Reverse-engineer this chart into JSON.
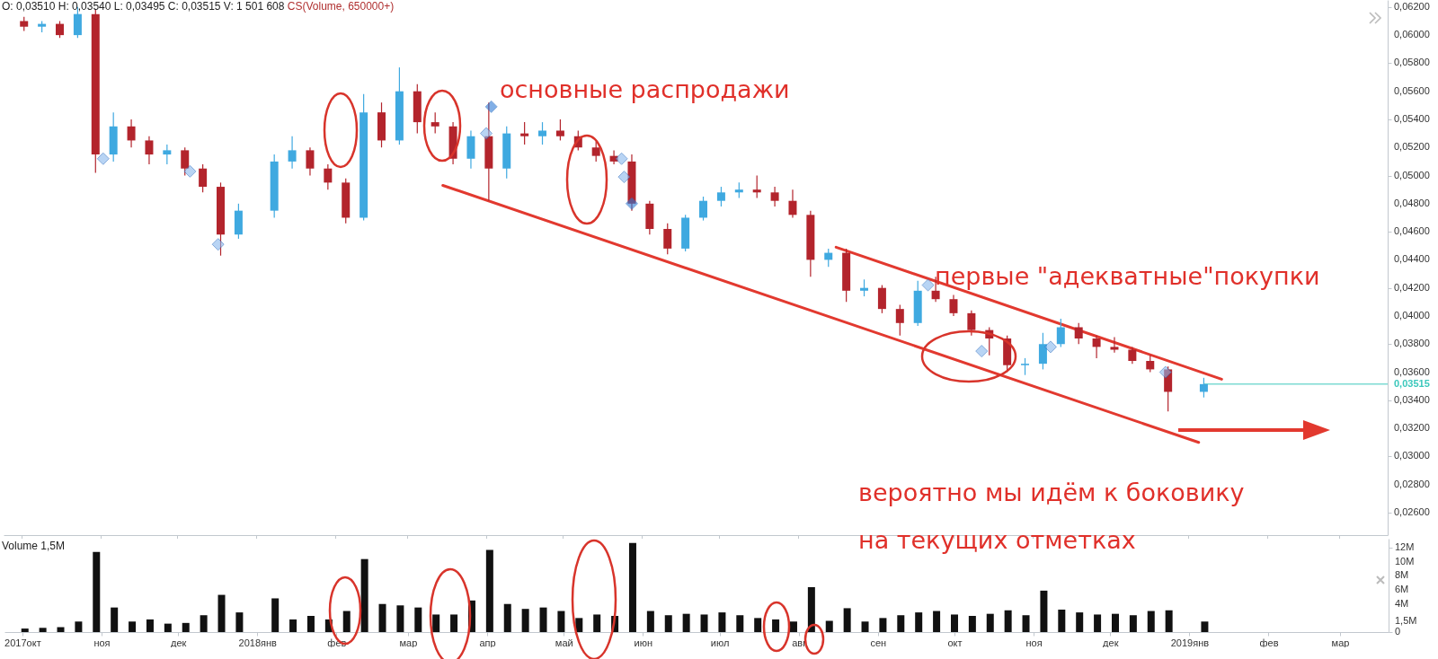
{
  "chart_data": [
    {
      "type": "candlestick",
      "title": "O: 0,03510  H: 0,03540  L: 0,03495  C: 0,03515  V: 1 501 608",
      "subtitle": "CS(Volume, 650000+)",
      "x": [
        "2017-10-02",
        "2017-10-09",
        "2017-10-16",
        "2017-10-23",
        "2017-10-30",
        "2017-11-06",
        "2017-11-13",
        "2017-11-20",
        "2017-11-27",
        "2017-12-04",
        "2017-12-11",
        "2017-12-18",
        "2017-12-25",
        "2018-01-08",
        "2018-01-15",
        "2018-01-22",
        "2018-01-29",
        "2018-02-05",
        "2018-02-12",
        "2018-02-19",
        "2018-02-26",
        "2018-03-05",
        "2018-03-12",
        "2018-03-19",
        "2018-03-26",
        "2018-04-02",
        "2018-04-09",
        "2018-04-16",
        "2018-04-23",
        "2018-04-30",
        "2018-05-07",
        "2018-05-14",
        "2018-05-21",
        "2018-05-28",
        "2018-06-04",
        "2018-06-11",
        "2018-06-18",
        "2018-06-25",
        "2018-07-02",
        "2018-07-09",
        "2018-07-16",
        "2018-07-23",
        "2018-07-30",
        "2018-08-06",
        "2018-08-13",
        "2018-08-20",
        "2018-08-27",
        "2018-09-03",
        "2018-09-10",
        "2018-09-17",
        "2018-09-24",
        "2018-10-01",
        "2018-10-08",
        "2018-10-15",
        "2018-10-22",
        "2018-10-29",
        "2018-11-05",
        "2018-11-12",
        "2018-11-19",
        "2018-11-26",
        "2018-12-03",
        "2018-12-10",
        "2018-12-17",
        "2018-12-24",
        "2019-01-07"
      ],
      "ohlc": [
        [
          0.061,
          0.0613,
          0.0603,
          0.0606
        ],
        [
          0.0606,
          0.061,
          0.0602,
          0.0608
        ],
        [
          0.0608,
          0.061,
          0.0598,
          0.06
        ],
        [
          0.06,
          0.062,
          0.0598,
          0.0615
        ],
        [
          0.0615,
          0.0618,
          0.0502,
          0.0515
        ],
        [
          0.0515,
          0.0545,
          0.051,
          0.0535
        ],
        [
          0.0535,
          0.054,
          0.052,
          0.0525
        ],
        [
          0.0525,
          0.0528,
          0.0508,
          0.0515
        ],
        [
          0.0515,
          0.0522,
          0.0508,
          0.0518
        ],
        [
          0.0518,
          0.052,
          0.05,
          0.0505
        ],
        [
          0.0505,
          0.0508,
          0.0488,
          0.0492
        ],
        [
          0.0492,
          0.0495,
          0.0443,
          0.0458
        ],
        [
          0.0458,
          0.048,
          0.0455,
          0.0475
        ],
        [
          0.0475,
          0.0515,
          0.047,
          0.051
        ],
        [
          0.051,
          0.0528,
          0.0505,
          0.0518
        ],
        [
          0.0518,
          0.052,
          0.05,
          0.0505
        ],
        [
          0.0505,
          0.0508,
          0.049,
          0.0495
        ],
        [
          0.0495,
          0.0498,
          0.0466,
          0.047
        ],
        [
          0.047,
          0.0558,
          0.0468,
          0.0545
        ],
        [
          0.0545,
          0.0552,
          0.052,
          0.0525
        ],
        [
          0.0525,
          0.0577,
          0.0522,
          0.056
        ],
        [
          0.056,
          0.0565,
          0.053,
          0.0538
        ],
        [
          0.0538,
          0.0545,
          0.053,
          0.0535
        ],
        [
          0.0535,
          0.0538,
          0.0508,
          0.0512
        ],
        [
          0.0512,
          0.0532,
          0.0505,
          0.0528
        ],
        [
          0.0528,
          0.0552,
          0.0482,
          0.0505
        ],
        [
          0.0505,
          0.0535,
          0.0498,
          0.053
        ],
        [
          0.053,
          0.0538,
          0.0522,
          0.0528
        ],
        [
          0.0528,
          0.0538,
          0.0522,
          0.0532
        ],
        [
          0.0532,
          0.054,
          0.0525,
          0.0528
        ],
        [
          0.0528,
          0.0532,
          0.0518,
          0.052
        ],
        [
          0.052,
          0.0524,
          0.051,
          0.0514
        ],
        [
          0.0514,
          0.0518,
          0.0508,
          0.051
        ],
        [
          0.051,
          0.0515,
          0.0475,
          0.048
        ],
        [
          0.048,
          0.0482,
          0.0458,
          0.0462
        ],
        [
          0.0462,
          0.0466,
          0.0444,
          0.0448
        ],
        [
          0.0448,
          0.0472,
          0.0446,
          0.047
        ],
        [
          0.047,
          0.0485,
          0.0468,
          0.0482
        ],
        [
          0.0482,
          0.0492,
          0.0478,
          0.0488
        ],
        [
          0.0488,
          0.0495,
          0.0484,
          0.049
        ],
        [
          0.049,
          0.05,
          0.0484,
          0.0488
        ],
        [
          0.0488,
          0.0492,
          0.0478,
          0.0482
        ],
        [
          0.0482,
          0.049,
          0.047,
          0.0472
        ],
        [
          0.0472,
          0.0475,
          0.0428,
          0.044
        ],
        [
          0.044,
          0.0448,
          0.0435,
          0.0445
        ],
        [
          0.0445,
          0.0448,
          0.041,
          0.0418
        ],
        [
          0.0418,
          0.0426,
          0.0414,
          0.042
        ],
        [
          0.042,
          0.0422,
          0.0402,
          0.0405
        ],
        [
          0.0405,
          0.0408,
          0.0386,
          0.0395
        ],
        [
          0.0395,
          0.0425,
          0.0393,
          0.0418
        ],
        [
          0.0418,
          0.0428,
          0.041,
          0.0412
        ],
        [
          0.0412,
          0.0415,
          0.04,
          0.0402
        ],
        [
          0.0402,
          0.0404,
          0.0386,
          0.039
        ],
        [
          0.039,
          0.0392,
          0.0372,
          0.0384
        ],
        [
          0.0384,
          0.0386,
          0.036,
          0.0365
        ],
        [
          0.0365,
          0.037,
          0.0358,
          0.0366
        ],
        [
          0.0366,
          0.0388,
          0.0362,
          0.038
        ],
        [
          0.038,
          0.0398,
          0.0378,
          0.0392
        ],
        [
          0.0392,
          0.0395,
          0.038,
          0.0384
        ],
        [
          0.0384,
          0.0386,
          0.037,
          0.0378
        ],
        [
          0.0378,
          0.0385,
          0.0374,
          0.0376
        ],
        [
          0.0376,
          0.0378,
          0.0366,
          0.0368
        ],
        [
          0.0368,
          0.0372,
          0.036,
          0.0362
        ],
        [
          0.0362,
          0.0364,
          0.0332,
          0.0346
        ],
        [
          0.0346,
          0.0356,
          0.0342,
          0.03515
        ]
      ],
      "colors": [
        "#b3242c",
        "#3fa9e0",
        "#b3242c",
        "#3fa9e0",
        "#b3242c",
        "#3fa9e0",
        "#b3242c",
        "#b3242c",
        "#3fa9e0",
        "#b3242c",
        "#b3242c",
        "#b3242c",
        "#3fa9e0",
        "#3fa9e0",
        "#3fa9e0",
        "#b3242c",
        "#b3242c",
        "#b3242c",
        "#3fa9e0",
        "#b3242c",
        "#3fa9e0",
        "#b3242c",
        "#b3242c",
        "#b3242c",
        "#3fa9e0",
        "#b3242c",
        "#3fa9e0",
        "#b3242c",
        "#3fa9e0",
        "#b3242c",
        "#b3242c",
        "#b3242c",
        "#b3242c",
        "#b3242c",
        "#b3242c",
        "#b3242c",
        "#3fa9e0",
        "#3fa9e0",
        "#3fa9e0",
        "#3fa9e0",
        "#b3242c",
        "#b3242c",
        "#b3242c",
        "#b3242c",
        "#3fa9e0",
        "#b3242c",
        "#3fa9e0",
        "#b3242c",
        "#b3242c",
        "#3fa9e0",
        "#b3242c",
        "#b3242c",
        "#b3242c",
        "#b3242c",
        "#b3242c",
        "#3fa9e0",
        "#3fa9e0",
        "#3fa9e0",
        "#b3242c",
        "#b3242c",
        "#b3242c",
        "#b3242c",
        "#b3242c",
        "#b3242c",
        "#3fa9e0"
      ],
      "series": [
        {
          "type": "line",
          "color": "#e2392f",
          "x": [
            "2018-03-15",
            "2019-01-05"
          ],
          "values": [
            0.0493,
            0.031
          ]
        },
        {
          "type": "line",
          "color": "#e2392f",
          "x": [
            "2018-08-16",
            "2019-01-14"
          ],
          "values": [
            0.0449,
            0.0355
          ]
        },
        {
          "type": "scatter",
          "marker": "diamond",
          "color": "#8ab8ee",
          "x": [
            "2017-11-02",
            "2017-12-06",
            "2017-12-17",
            "2018-04-01",
            "2018-05-24",
            "2018-05-25",
            "2018-09-21",
            "2018-10-12",
            "2018-11-08",
            "2018-12-23"
          ],
          "values": [
            0.0512,
            0.0503,
            0.0451,
            0.053,
            0.0512,
            0.0499,
            0.0422,
            0.0375,
            0.0378,
            0.036
          ]
        },
        {
          "type": "scatter",
          "marker": "diamond",
          "color": "#2e7bd6",
          "x": [
            "2018-04-03",
            "2018-05-28"
          ],
          "values": [
            0.0549,
            0.048
          ]
        }
      ],
      "xlim": [
        "2017-09-24",
        "2019-03-20"
      ],
      "xticks": [
        {
          "value": "2017-10-01",
          "label": null
        },
        {
          "value": "2017-11-01",
          "label": null
        },
        {
          "value": "2017-12-01",
          "label": null
        },
        {
          "value": "2018-01-01",
          "label": null
        },
        {
          "value": "2018-02-01",
          "label": null
        },
        {
          "value": "2018-03-01",
          "label": null
        },
        {
          "value": "2018-04-01",
          "label": null
        },
        {
          "value": "2018-05-01",
          "label": null
        },
        {
          "value": "2018-06-01",
          "label": null
        },
        {
          "value": "2018-07-01",
          "label": null
        },
        {
          "value": "2018-08-01",
          "label": null
        },
        {
          "value": "2018-09-01",
          "label": null
        },
        {
          "value": "2018-10-01",
          "label": null
        },
        {
          "value": "2018-11-01",
          "label": null
        },
        {
          "value": "2018-12-01",
          "label": null
        },
        {
          "value": "2019-01-01",
          "label": null
        },
        {
          "value": "2019-02-01",
          "label": null
        },
        {
          "value": "2019-03-01",
          "label": null
        }
      ],
      "ylim": [
        0.0244,
        0.0625
      ],
      "yticks": [
        {
          "value": 0.026,
          "label": "0,02600"
        },
        {
          "value": 0.028,
          "label": "0,02800"
        },
        {
          "value": 0.03,
          "label": "0,03000"
        },
        {
          "value": 0.032,
          "label": "0,03200"
        },
        {
          "value": 0.034,
          "label": "0,03400"
        },
        {
          "value": 0.036,
          "label": "0,03600"
        },
        {
          "value": 0.038,
          "label": "0,03800"
        },
        {
          "value": 0.04,
          "label": "0,04000"
        },
        {
          "value": 0.042,
          "label": "0,04200"
        },
        {
          "value": 0.044,
          "label": "0,04400"
        },
        {
          "value": 0.046,
          "label": "0,04600"
        },
        {
          "value": 0.048,
          "label": "0,04800"
        },
        {
          "value": 0.05,
          "label": "0,05000"
        },
        {
          "value": 0.052,
          "label": "0,05200"
        },
        {
          "value": 0.054,
          "label": "0,05400"
        },
        {
          "value": 0.056,
          "label": "0,05600"
        },
        {
          "value": 0.058,
          "label": "0,05800"
        },
        {
          "value": 0.06,
          "label": "0,06000"
        },
        {
          "value": 0.062,
          "label": "0,06200"
        }
      ],
      "ref_lines": [
        {
          "axis": "y",
          "value": 0.03515,
          "label": "0,03515",
          "color": "#3cc8bc"
        }
      ],
      "tick_labels": "y",
      "annotations": [
        "основные распродажи",
        "первые \"адекватные\"покупки",
        "вероятно мы идём к боковику",
        "на текущих отметках"
      ]
    },
    {
      "type": "bar",
      "title": "Volume 1,5M",
      "color": "#111111",
      "x": [
        "2017-10-02",
        "2017-10-09",
        "2017-10-16",
        "2017-10-23",
        "2017-10-30",
        "2017-11-06",
        "2017-11-13",
        "2017-11-20",
        "2017-11-27",
        "2017-12-04",
        "2017-12-11",
        "2017-12-18",
        "2017-12-25",
        "2018-01-08",
        "2018-01-15",
        "2018-01-22",
        "2018-01-29",
        "2018-02-05",
        "2018-02-12",
        "2018-02-19",
        "2018-02-26",
        "2018-03-05",
        "2018-03-12",
        "2018-03-19",
        "2018-03-26",
        "2018-04-02",
        "2018-04-09",
        "2018-04-16",
        "2018-04-23",
        "2018-04-30",
        "2018-05-07",
        "2018-05-14",
        "2018-05-21",
        "2018-05-28",
        "2018-06-04",
        "2018-06-11",
        "2018-06-18",
        "2018-06-25",
        "2018-07-02",
        "2018-07-09",
        "2018-07-16",
        "2018-07-23",
        "2018-07-30",
        "2018-08-06",
        "2018-08-13",
        "2018-08-20",
        "2018-08-27",
        "2018-09-03",
        "2018-09-10",
        "2018-09-17",
        "2018-09-24",
        "2018-10-01",
        "2018-10-08",
        "2018-10-15",
        "2018-10-22",
        "2018-10-29",
        "2018-11-05",
        "2018-11-12",
        "2018-11-19",
        "2018-11-26",
        "2018-12-03",
        "2018-12-10",
        "2018-12-17",
        "2018-12-24",
        "2019-01-07"
      ],
      "values": [
        500000,
        600000,
        700000,
        1500000,
        11400000,
        3500000,
        1500000,
        1800000,
        1200000,
        1300000,
        2400000,
        5300000,
        2800000,
        4800000,
        1800000,
        2300000,
        1800000,
        3000000,
        10400000,
        4000000,
        3800000,
        3500000,
        2500000,
        2500000,
        4500000,
        11700000,
        4000000,
        3300000,
        3500000,
        3000000,
        2000000,
        2500000,
        2300000,
        12700000,
        3000000,
        2400000,
        2600000,
        2500000,
        2800000,
        2400000,
        2000000,
        1800000,
        1500000,
        6400000,
        1600000,
        3400000,
        1500000,
        2000000,
        2400000,
        2800000,
        3000000,
        2500000,
        2300000,
        2600000,
        3100000,
        2400000,
        5900000,
        3200000,
        2800000,
        2500000,
        2600000,
        2400000,
        3000000,
        3100000,
        1500000
      ],
      "xlim": [
        "2017-09-24",
        "2019-03-20"
      ],
      "xticks": [
        {
          "value": "2017-10-01",
          "label": "2017окт"
        },
        {
          "value": "2017-11-01",
          "label": "ноя"
        },
        {
          "value": "2017-12-01",
          "label": "дек"
        },
        {
          "value": "2018-01-01",
          "label": "2018янв"
        },
        {
          "value": "2018-02-01",
          "label": "фев"
        },
        {
          "value": "2018-03-01",
          "label": "мар"
        },
        {
          "value": "2018-04-01",
          "label": "апр"
        },
        {
          "value": "2018-05-01",
          "label": "май"
        },
        {
          "value": "2018-06-01",
          "label": "июн"
        },
        {
          "value": "2018-07-01",
          "label": "июл"
        },
        {
          "value": "2018-08-01",
          "label": "авг"
        },
        {
          "value": "2018-09-01",
          "label": "сен"
        },
        {
          "value": "2018-10-01",
          "label": "окт"
        },
        {
          "value": "2018-11-01",
          "label": "ноя"
        },
        {
          "value": "2018-12-01",
          "label": "дек"
        },
        {
          "value": "2019-01-01",
          "label": "2019янв"
        },
        {
          "value": "2019-02-01",
          "label": "фев"
        },
        {
          "value": "2019-03-01",
          "label": "мар"
        }
      ],
      "ylim": [
        0,
        13300000
      ],
      "yticks": [
        0,
        {
          "value": 1500000,
          "label": "1,5M"
        },
        {
          "value": 4000000,
          "label": "4M"
        },
        {
          "value": 6000000,
          "label": "6M"
        },
        {
          "value": 8000000,
          "label": "8M"
        },
        {
          "value": 10000000,
          "label": "10M"
        },
        {
          "value": 12000000,
          "label": "12M"
        }
      ]
    }
  ]
}
